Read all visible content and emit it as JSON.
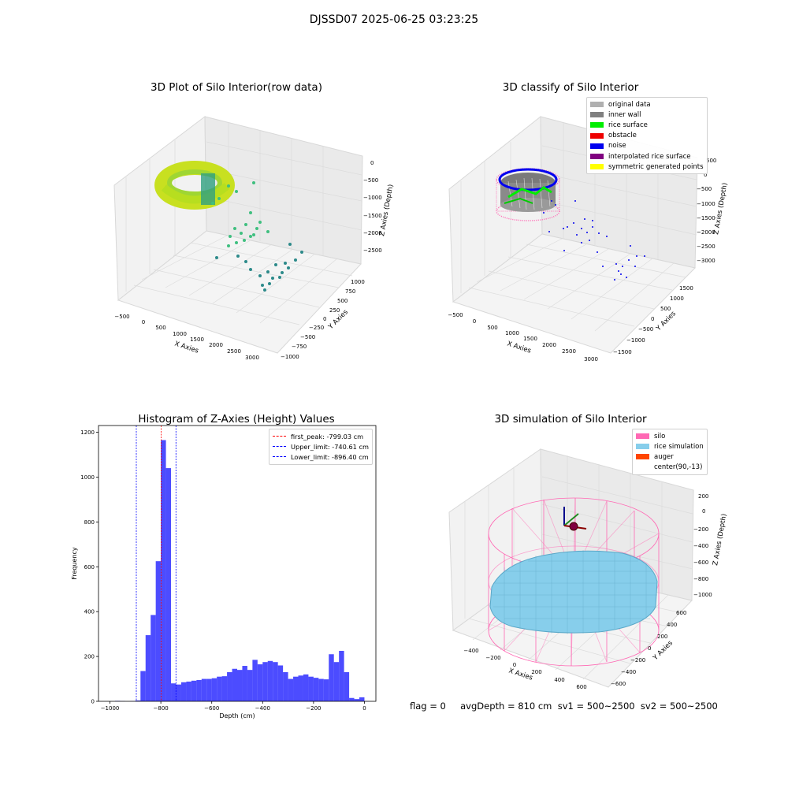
{
  "suptitle": "DJSSD07 2025-06-25 03:23:25",
  "panels": {
    "raw": {
      "title": "3D Plot of Silo Interior(row data)",
      "xlabel": "X Axies",
      "ylabel": "Y Axies",
      "zlabel": "Z Axies (Depth)",
      "xticks": [
        "−500",
        "0",
        "500",
        "1000",
        "1500",
        "2000",
        "2500",
        "3000"
      ],
      "yticks": [
        "1000",
        "750",
        "500",
        "250",
        "0",
        "−250",
        "−500",
        "−750",
        "−1000"
      ],
      "zticks": [
        "0",
        "−500",
        "−1000",
        "−1500",
        "−2000",
        "−2500"
      ]
    },
    "classify": {
      "title": "3D classify of Silo Interior",
      "xlabel": "X Axies",
      "ylabel": "Y Axies",
      "zlabel": "Z Axies (Depth)",
      "xticks": [
        "−500",
        "0",
        "500",
        "1000",
        "1500",
        "2000",
        "2500",
        "3000"
      ],
      "yticks": [
        "1500",
        "1000",
        "500",
        "0",
        "−500",
        "−1000",
        "−1500"
      ],
      "zticks": [
        "500",
        "0",
        "−500",
        "−1000",
        "−1500",
        "−2000",
        "−2500",
        "−3000"
      ],
      "legend": [
        {
          "label": "original data",
          "color": "#b0b0b0"
        },
        {
          "label": "inner wall",
          "color": "#808080"
        },
        {
          "label": "rice surface",
          "color": "#00ee00"
        },
        {
          "label": "obstacle",
          "color": "#ee0000"
        },
        {
          "label": "noise",
          "color": "#0000ee"
        },
        {
          "label": "interpolated rice surface",
          "color": "#800080"
        },
        {
          "label": "symmetric generated points",
          "color": "#ffff00"
        }
      ]
    },
    "simulation": {
      "title": "3D simulation of Silo Interior",
      "xlabel": "X Axies",
      "ylabel": "Y Axies",
      "zlabel": "Z Axies (Depth)",
      "xticks": [
        "−400",
        "−200",
        "0",
        "200",
        "400",
        "600"
      ],
      "yticks": [
        "600",
        "400",
        "200",
        "0",
        "−200",
        "−400",
        "−600"
      ],
      "zticks": [
        "200",
        "0",
        "−200",
        "−400",
        "−600",
        "−800",
        "−1000"
      ],
      "legend": [
        {
          "label": "silo",
          "color": "#ff69b4"
        },
        {
          "label": "rice simulation",
          "color": "#87ceeb"
        },
        {
          "label": "auger",
          "color": "#ff4500"
        },
        {
          "label": "center(90,-13)",
          "color": "#ffffff"
        }
      ]
    }
  },
  "chart_data": [
    {
      "type": "bar",
      "title": "Histogram of Z-Axies (Height) Values",
      "xlabel": "Depth (cm)",
      "ylabel": "Frequency",
      "xlim": [
        -1045,
        45
      ],
      "ylim": [
        0,
        1230
      ],
      "xticks": [
        "−1000",
        "−800",
        "−600",
        "−400",
        "−200",
        "0"
      ],
      "xtick_values": [
        -1000,
        -800,
        -600,
        -400,
        -200,
        0
      ],
      "yticks": [
        "0",
        "200",
        "400",
        "600",
        "800",
        "1000",
        "1200"
      ],
      "ytick_values": [
        0,
        200,
        400,
        600,
        800,
        1000,
        1200
      ],
      "bin_width": 20,
      "bin_starts": [
        -980,
        -960,
        -940,
        -920,
        -900,
        -880,
        -860,
        -840,
        -820,
        -800,
        -780,
        -760,
        -740,
        -720,
        -700,
        -680,
        -660,
        -640,
        -620,
        -600,
        -580,
        -560,
        -540,
        -520,
        -500,
        -480,
        -460,
        -440,
        -420,
        -400,
        -380,
        -360,
        -340,
        -320,
        -300,
        -280,
        -260,
        -240,
        -220,
        -200,
        -180,
        -160,
        -140,
        -120,
        -100,
        -80,
        -60,
        -40,
        -20,
        0
      ],
      "values": [
        2,
        1,
        0,
        1,
        4,
        135,
        295,
        385,
        625,
        1165,
        1040,
        80,
        75,
        85,
        88,
        92,
        95,
        100,
        100,
        103,
        110,
        112,
        130,
        145,
        140,
        158,
        140,
        185,
        165,
        175,
        180,
        175,
        160,
        130,
        100,
        110,
        115,
        120,
        110,
        105,
        100,
        98,
        210,
        175,
        225,
        130,
        15,
        10,
        18,
        1
      ],
      "color": "#0000ff",
      "lines": [
        {
          "label": "first_peak: -799.03 cm",
          "x": -799.03,
          "color": "#ff0000"
        },
        {
          "label": "Upper_limit: -740.61 cm",
          "x": -740.61,
          "color": "#0000ff"
        },
        {
          "label": "Lower_limit: -896.40 cm",
          "x": -896.4,
          "color": "#0000ff"
        }
      ]
    }
  ],
  "status": {
    "text": "flag = 0     avgDepth = 810 cm  sv1 = 500~2500  sv2 = 500~2500"
  }
}
